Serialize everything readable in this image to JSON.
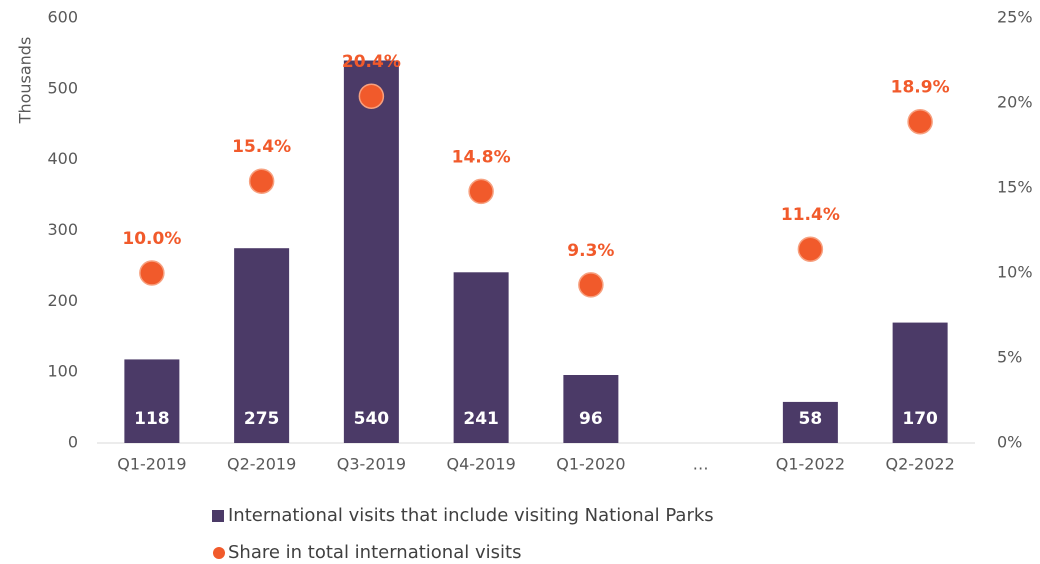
{
  "chart_data": {
    "type": "bar",
    "y_label": "Thousands",
    "categories": [
      "Q1-2019",
      "Q2-2019",
      "Q3-2019",
      "Q4-2019",
      "Q1-2020",
      "…",
      "Q1-2022",
      "Q2-2022"
    ],
    "series": [
      {
        "name": "International visits that include visiting National Parks",
        "type": "bar",
        "color": "#4b3a67",
        "values": [
          118,
          275,
          540,
          241,
          96,
          null,
          58,
          170
        ]
      },
      {
        "name": "Share in total international visits",
        "type": "scatter",
        "axis": "y2",
        "color": "#f15a2b",
        "values": [
          10.0,
          15.4,
          20.4,
          14.8,
          9.3,
          null,
          11.4,
          18.9
        ],
        "value_labels": [
          "10.0%",
          "15.4%",
          "20.4%",
          "14.8%",
          "9.3%",
          null,
          "11.4%",
          "18.9%"
        ]
      }
    ],
    "ylim": [
      0,
      600
    ],
    "yticks": [
      0,
      100,
      200,
      300,
      400,
      500,
      600
    ],
    "y2lim": [
      0,
      25
    ],
    "y2ticks": [
      {
        "value": 0,
        "label": "0%"
      },
      {
        "value": 5,
        "label": "5%"
      },
      {
        "value": 10,
        "label": "10%"
      },
      {
        "value": 15,
        "label": "15%"
      },
      {
        "value": 20,
        "label": "20%"
      },
      {
        "value": 25,
        "label": "25%"
      }
    ],
    "legend": "bottom"
  }
}
